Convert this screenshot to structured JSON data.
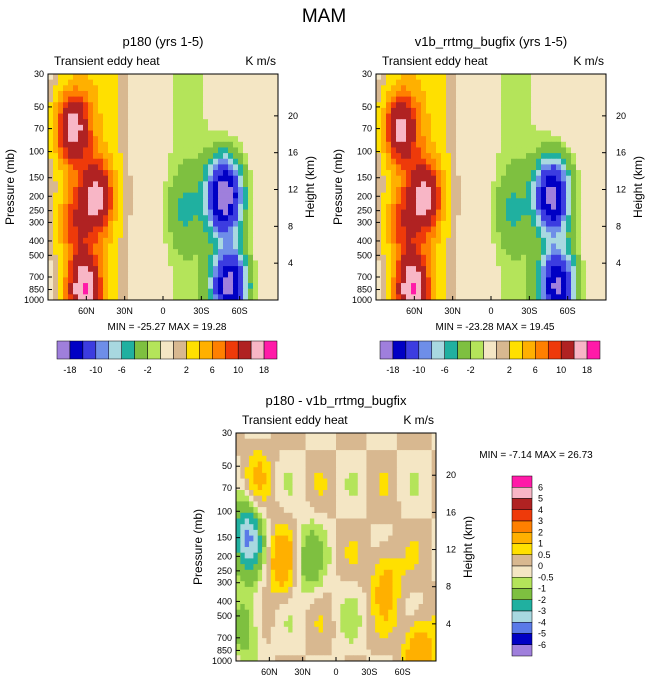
{
  "figure_title": "MAM",
  "chart_data": [
    {
      "type": "heatmap",
      "title": "p180 (yrs 1-5)",
      "left_label": "Transient eddy heat",
      "right_label": "K m/s",
      "ylabel": "Pressure (mb)",
      "ylabel_right": "Height (km)",
      "x_ticks": [
        "60N",
        "30N",
        "0",
        "30S",
        "60S"
      ],
      "x_tick_values": [
        60,
        30,
        0,
        -30,
        -60
      ],
      "xlim": [
        90,
        -90
      ],
      "y_ticks": [
        "30",
        "50",
        "70",
        "100",
        "150",
        "200",
        "250",
        "300",
        "400",
        "500",
        "700",
        "850",
        "1000"
      ],
      "y_tick_values": [
        30,
        50,
        70,
        100,
        150,
        200,
        250,
        300,
        400,
        500,
        700,
        850,
        1000
      ],
      "ylim": [
        30,
        1000
      ],
      "height_ticks": [
        "20",
        "16",
        "12",
        "8",
        "4"
      ],
      "height_tick_values": [
        20,
        16,
        12,
        8,
        4
      ],
      "min_max": "MIN = -25.27  MAX = 19.28",
      "colorbar_labels": [
        "-18",
        "-10",
        "-6",
        "-2",
        "2",
        "6",
        "10",
        "18"
      ],
      "levels": [
        -18,
        -14,
        -10,
        -8,
        -6,
        -4,
        -2,
        -1,
        1,
        2,
        4,
        6,
        8,
        10,
        14,
        18
      ],
      "features": [
        {
          "lat": 71,
          "p": 70,
          "value": 14
        },
        {
          "lat": 52,
          "p": 200,
          "value": 12
        },
        {
          "lat": 62,
          "p": 850,
          "value": 15
        },
        {
          "lat": -48,
          "p": 200,
          "value": -22
        },
        {
          "lat": -52,
          "p": 800,
          "value": -20
        },
        {
          "lat": -16,
          "p": 250,
          "value": -3
        },
        {
          "lat": 70,
          "p": 300,
          "value": 6
        }
      ]
    },
    {
      "type": "heatmap",
      "title": "v1b_rrtmg_bugfix (yrs 1-5)",
      "left_label": "Transient eddy heat",
      "right_label": "K m/s",
      "ylabel": "Pressure (mb)",
      "ylabel_right": "Height (km)",
      "x_ticks": [
        "60N",
        "30N",
        "0",
        "30S",
        "60S"
      ],
      "x_tick_values": [
        60,
        30,
        0,
        -30,
        -60
      ],
      "xlim": [
        90,
        -90
      ],
      "y_ticks": [
        "30",
        "50",
        "70",
        "100",
        "150",
        "200",
        "250",
        "300",
        "400",
        "500",
        "700",
        "850",
        "1000"
      ],
      "y_tick_values": [
        30,
        50,
        70,
        100,
        150,
        200,
        250,
        300,
        400,
        500,
        700,
        850,
        1000
      ],
      "ylim": [
        30,
        1000
      ],
      "height_ticks": [
        "20",
        "16",
        "12",
        "8",
        "4"
      ],
      "height_tick_values": [
        20,
        16,
        12,
        8,
        4
      ],
      "min_max": "MIN = -23.28  MAX = 19.45",
      "colorbar_labels": [
        "-18",
        "-10",
        "-6",
        "-2",
        "2",
        "6",
        "10",
        "18"
      ],
      "levels": [
        -18,
        -14,
        -10,
        -8,
        -6,
        -4,
        -2,
        -1,
        1,
        2,
        4,
        6,
        8,
        10,
        14,
        18
      ],
      "features": [
        {
          "lat": 71,
          "p": 70,
          "value": 13
        },
        {
          "lat": 52,
          "p": 200,
          "value": 12
        },
        {
          "lat": 62,
          "p": 850,
          "value": 15
        },
        {
          "lat": -48,
          "p": 200,
          "value": -20
        },
        {
          "lat": -52,
          "p": 800,
          "value": -19
        },
        {
          "lat": -16,
          "p": 250,
          "value": -3
        },
        {
          "lat": 70,
          "p": 300,
          "value": 6
        }
      ]
    },
    {
      "type": "heatmap",
      "title": "p180 - v1b_rrtmg_bugfix",
      "left_label": "Transient eddy heat",
      "right_label": "K m/s",
      "ylabel": "Pressure (mb)",
      "ylabel_right": "Height (km)",
      "x_ticks": [
        "60N",
        "30N",
        "0",
        "30S",
        "60S"
      ],
      "x_tick_values": [
        60,
        30,
        0,
        -30,
        -60
      ],
      "xlim": [
        90,
        -90
      ],
      "y_ticks": [
        "30",
        "50",
        "70",
        "100",
        "150",
        "200",
        "250",
        "300",
        "400",
        "500",
        "700",
        "850",
        "1000"
      ],
      "y_tick_values": [
        30,
        50,
        70,
        100,
        150,
        200,
        250,
        300,
        400,
        500,
        700,
        850,
        1000
      ],
      "ylim": [
        30,
        1000
      ],
      "height_ticks": [
        "20",
        "16",
        "12",
        "8",
        "4"
      ],
      "height_tick_values": [
        20,
        16,
        12,
        8,
        4
      ],
      "min_max": "MIN = -7.14  MAX = 26.73",
      "colorbar_labels": [
        "6",
        "5",
        "4",
        "3",
        "2",
        "1",
        "0.5",
        "0",
        "-0.5",
        "-1",
        "-2",
        "-3",
        "-4",
        "-5",
        "-6"
      ],
      "levels": [
        -6,
        -5,
        -4,
        -3,
        -2,
        -1,
        -0.5,
        0,
        0.5,
        1,
        2,
        3,
        4,
        5,
        6
      ],
      "features": [
        {
          "lat": 80,
          "p": 150,
          "value": -4
        },
        {
          "lat": 80,
          "p": 600,
          "value": -1.5
        },
        {
          "lat": 50,
          "p": 220,
          "value": 1.5
        },
        {
          "lat": 25,
          "p": 210,
          "value": -1.5
        },
        {
          "lat": -45,
          "p": 280,
          "value": 1.5
        },
        {
          "lat": 70,
          "p": 60,
          "value": 0.8
        },
        {
          "lat": -10,
          "p": 500,
          "value": -0.3
        },
        {
          "lat": -75,
          "p": 850,
          "value": 2
        }
      ]
    }
  ],
  "palettes": {
    "main": [
      "#9f7fdc",
      "#0000c4",
      "#3c3ce0",
      "#6e8ee8",
      "#a8d8e0",
      "#20b0a0",
      "#7ec040",
      "#b4e45a",
      "#f4e6c4",
      "#d8b890",
      "#ffe000",
      "#ffb000",
      "#ff8000",
      "#ee3a0a",
      "#b02222",
      "#f8b6c6",
      "#ff1aa8"
    ],
    "diff": [
      "#9f7fdc",
      "#0000c4",
      "#5a7ae8",
      "#a8d8e0",
      "#20b0a0",
      "#7ec040",
      "#b4e45a",
      "#f4e6c4",
      "#d8b890",
      "#ffe000",
      "#ffb000",
      "#ff8000",
      "#ee3a0a",
      "#b02222",
      "#f8b6c6",
      "#ff1aa8"
    ]
  }
}
